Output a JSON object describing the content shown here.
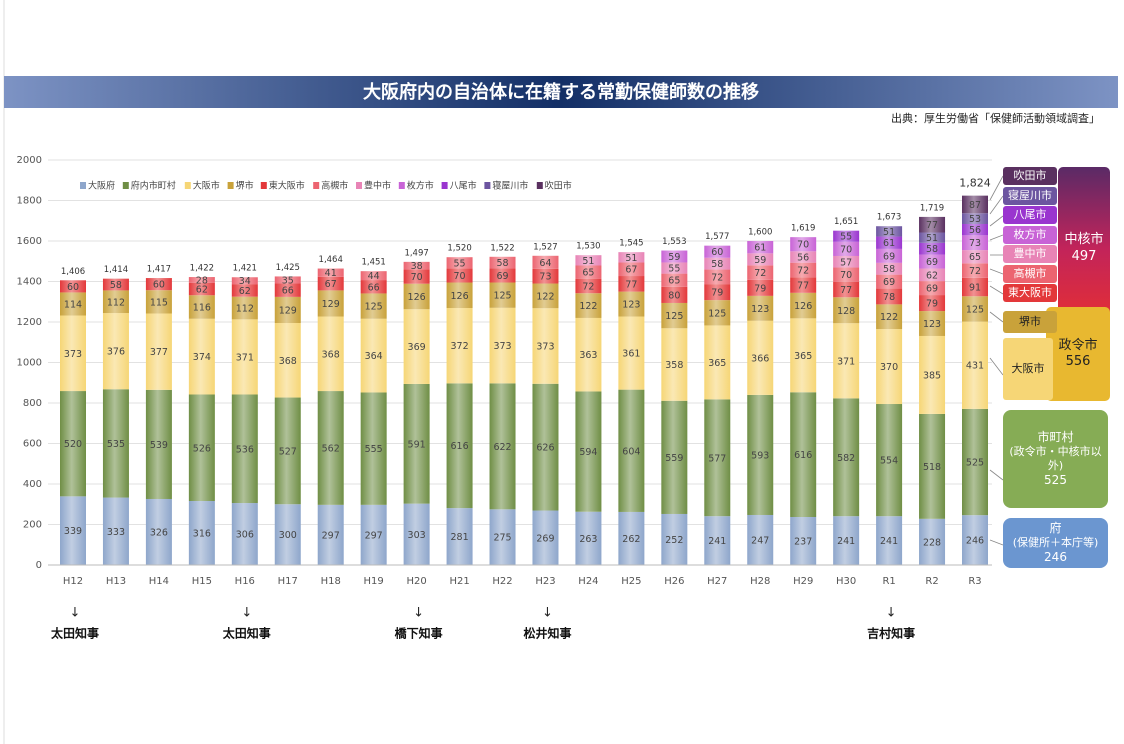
{
  "title": "大阪府内の自治体に在籍する常勤保健師数の推移",
  "source": "出典：厚生労働省「保健師活動領域調査」",
  "chart_data": {
    "type": "stacked-bar",
    "categories": [
      "H12",
      "H13",
      "H14",
      "H15",
      "H16",
      "H17",
      "H18",
      "H19",
      "H20",
      "H21",
      "H22",
      "H23",
      "H24",
      "H25",
      "H26",
      "H27",
      "H28",
      "H29",
      "H30",
      "R1",
      "R2",
      "R3"
    ],
    "series": [
      {
        "name": "大阪府",
        "color": "#8ea6cb",
        "values": [
          339,
          333,
          326,
          316,
          306,
          300,
          297,
          297,
          303,
          281,
          275,
          269,
          263,
          262,
          252,
          241,
          247,
          237,
          241,
          241,
          228,
          246
        ]
      },
      {
        "name": "府内市町村",
        "color": "#6f8e45",
        "values": [
          520,
          535,
          539,
          526,
          536,
          527,
          562,
          555,
          591,
          616,
          622,
          626,
          594,
          604,
          559,
          577,
          593,
          616,
          582,
          554,
          518,
          525
        ]
      },
      {
        "name": "大阪市",
        "color": "#f6d676",
        "values": [
          373,
          376,
          377,
          374,
          371,
          368,
          368,
          364,
          369,
          372,
          373,
          373,
          363,
          361,
          358,
          365,
          366,
          365,
          371,
          370,
          385,
          431
        ]
      },
      {
        "name": "堺市",
        "color": "#c9a23a",
        "values": [
          114,
          112,
          115,
          116,
          112,
          129,
          129,
          125,
          126,
          126,
          125,
          122,
          122,
          123,
          125,
          125,
          123,
          126,
          128,
          122,
          123,
          125
        ]
      },
      {
        "name": "東大阪市",
        "color": "#e3383a",
        "values": [
          60,
          58,
          60,
          62,
          62,
          66,
          67,
          66,
          70,
          70,
          69,
          73,
          72,
          77,
          80,
          79,
          79,
          77,
          77,
          78,
          79,
          91
        ]
      },
      {
        "name": "高槻市",
        "color": "#ec6470",
        "values": [
          null,
          null,
          null,
          28,
          34,
          35,
          41,
          44,
          38,
          55,
          58,
          64,
          65,
          67,
          65,
          72,
          72,
          72,
          70,
          69,
          69,
          72
        ]
      },
      {
        "name": "豊中市",
        "color": "#e884b6",
        "values": [
          null,
          null,
          null,
          null,
          null,
          null,
          null,
          null,
          null,
          null,
          null,
          null,
          51,
          51,
          55,
          58,
          59,
          56,
          57,
          58,
          62,
          65
        ]
      },
      {
        "name": "枚方市",
        "color": "#c863d6",
        "values": [
          null,
          null,
          null,
          null,
          null,
          null,
          null,
          null,
          null,
          null,
          null,
          null,
          null,
          null,
          59,
          60,
          61,
          70,
          70,
          69,
          69,
          73
        ]
      },
      {
        "name": "八尾市",
        "color": "#9a35cf",
        "values": [
          null,
          null,
          null,
          null,
          null,
          null,
          null,
          null,
          null,
          null,
          null,
          null,
          null,
          null,
          null,
          null,
          null,
          null,
          55,
          61,
          58,
          56
        ]
      },
      {
        "name": "寝屋川市",
        "color": "#6c55a0",
        "values": [
          null,
          null,
          null,
          null,
          null,
          null,
          null,
          null,
          null,
          null,
          null,
          null,
          null,
          null,
          null,
          null,
          null,
          null,
          null,
          51,
          51,
          53
        ]
      },
      {
        "name": "吹田市",
        "color": "#5a3060",
        "values": [
          null,
          null,
          null,
          null,
          null,
          null,
          null,
          null,
          null,
          null,
          null,
          null,
          null,
          null,
          null,
          null,
          null,
          null,
          null,
          null,
          77,
          87
        ]
      }
    ],
    "total_labels": [
      "1,406",
      "1,414",
      "1,417",
      "1,422",
      "1,421",
      "1,425",
      "1,464",
      "1,451",
      "1,497",
      "1,520",
      "1,522",
      "1,527",
      "1,530",
      "1,545",
      "1,553",
      "1,577",
      "1,600",
      "1,619",
      "1,651",
      "1,673",
      "1,719",
      "1,824"
    ],
    "ylim": [
      0,
      2000
    ],
    "yticks": [
      0,
      200,
      400,
      600,
      800,
      1000,
      1200,
      1400,
      1600,
      1800,
      2000
    ],
    "grid": true,
    "groups": [
      {
        "label": "中核市",
        "value": 497
      },
      {
        "label": "政令市",
        "value": 556
      },
      {
        "label": "市町村",
        "note": "(政令市・中核市以外)",
        "value": 525
      },
      {
        "label": "府",
        "note": "(保健所＋本庁等)",
        "value": 246
      }
    ],
    "governors": [
      "太田知事",
      null,
      null,
      null,
      "太田知事",
      null,
      null,
      null,
      "橋下知事",
      null,
      null,
      "松井知事",
      null,
      null,
      null,
      null,
      null,
      null,
      null,
      "吉村知事",
      null,
      null
    ]
  }
}
